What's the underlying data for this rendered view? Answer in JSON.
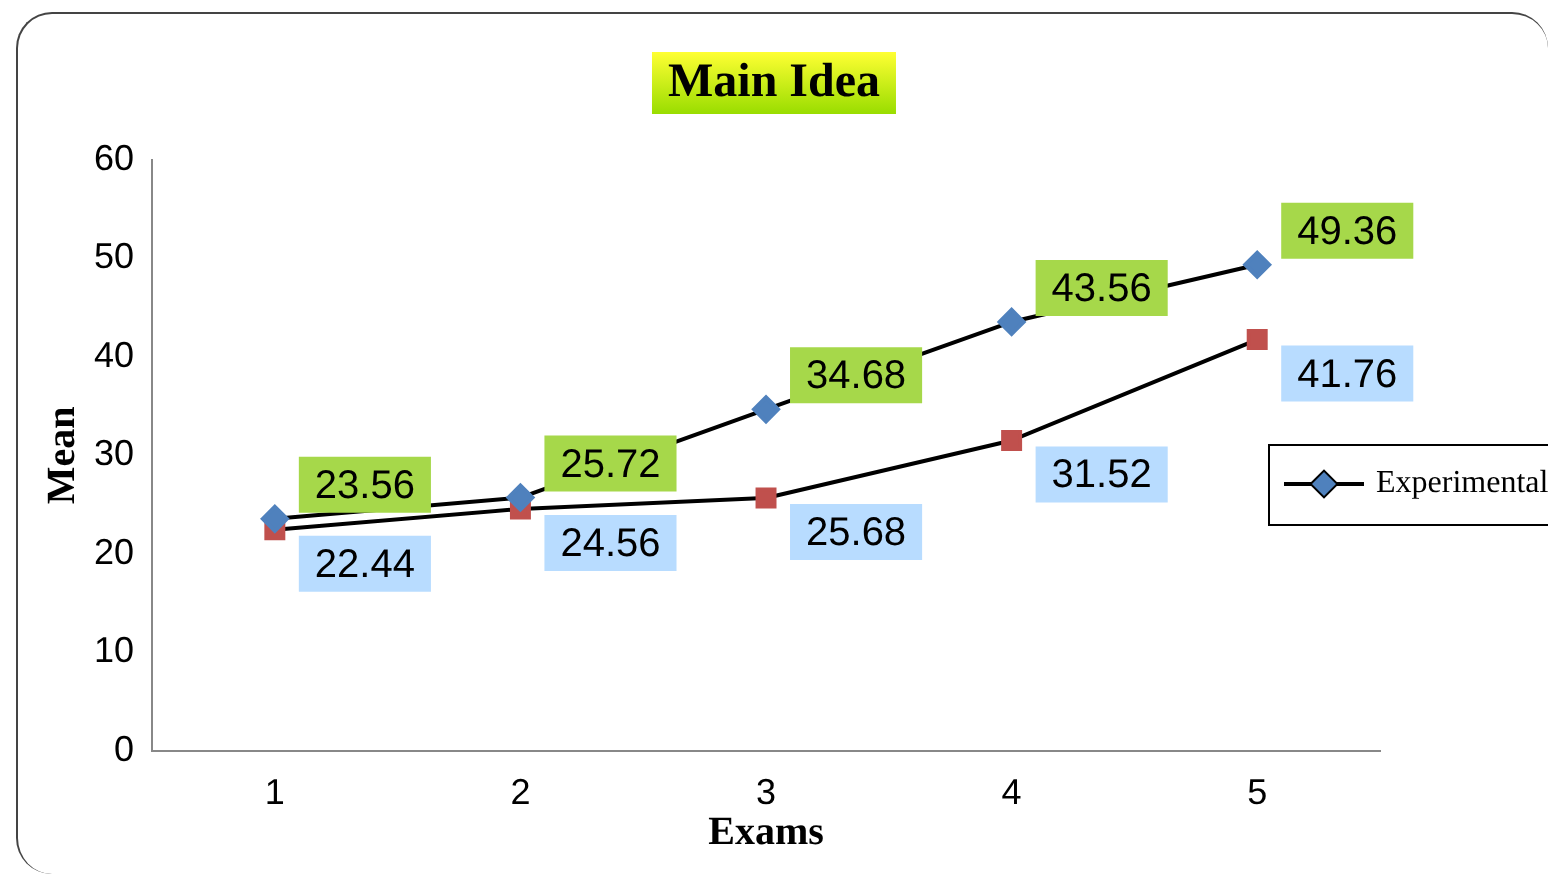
{
  "chart_data": {
    "type": "line",
    "title": "Main Idea",
    "xlabel": "Exams",
    "ylabel": "Mean",
    "categories": [
      "1",
      "2",
      "3",
      "4",
      "5"
    ],
    "series": [
      {
        "name": "Experimental",
        "color": "#4f81bd",
        "marker": "diamond",
        "values": [
          23.56,
          25.72,
          34.68,
          43.56,
          49.36
        ]
      },
      {
        "color": "#c0504d",
        "marker": "square",
        "values": [
          22.44,
          24.56,
          25.68,
          31.52,
          41.76
        ]
      }
    ],
    "ylim": [
      0,
      60
    ],
    "yticks": [
      0,
      10,
      20,
      30,
      40,
      50,
      60
    ],
    "grid": false,
    "legend": "right",
    "data_labels": true
  }
}
